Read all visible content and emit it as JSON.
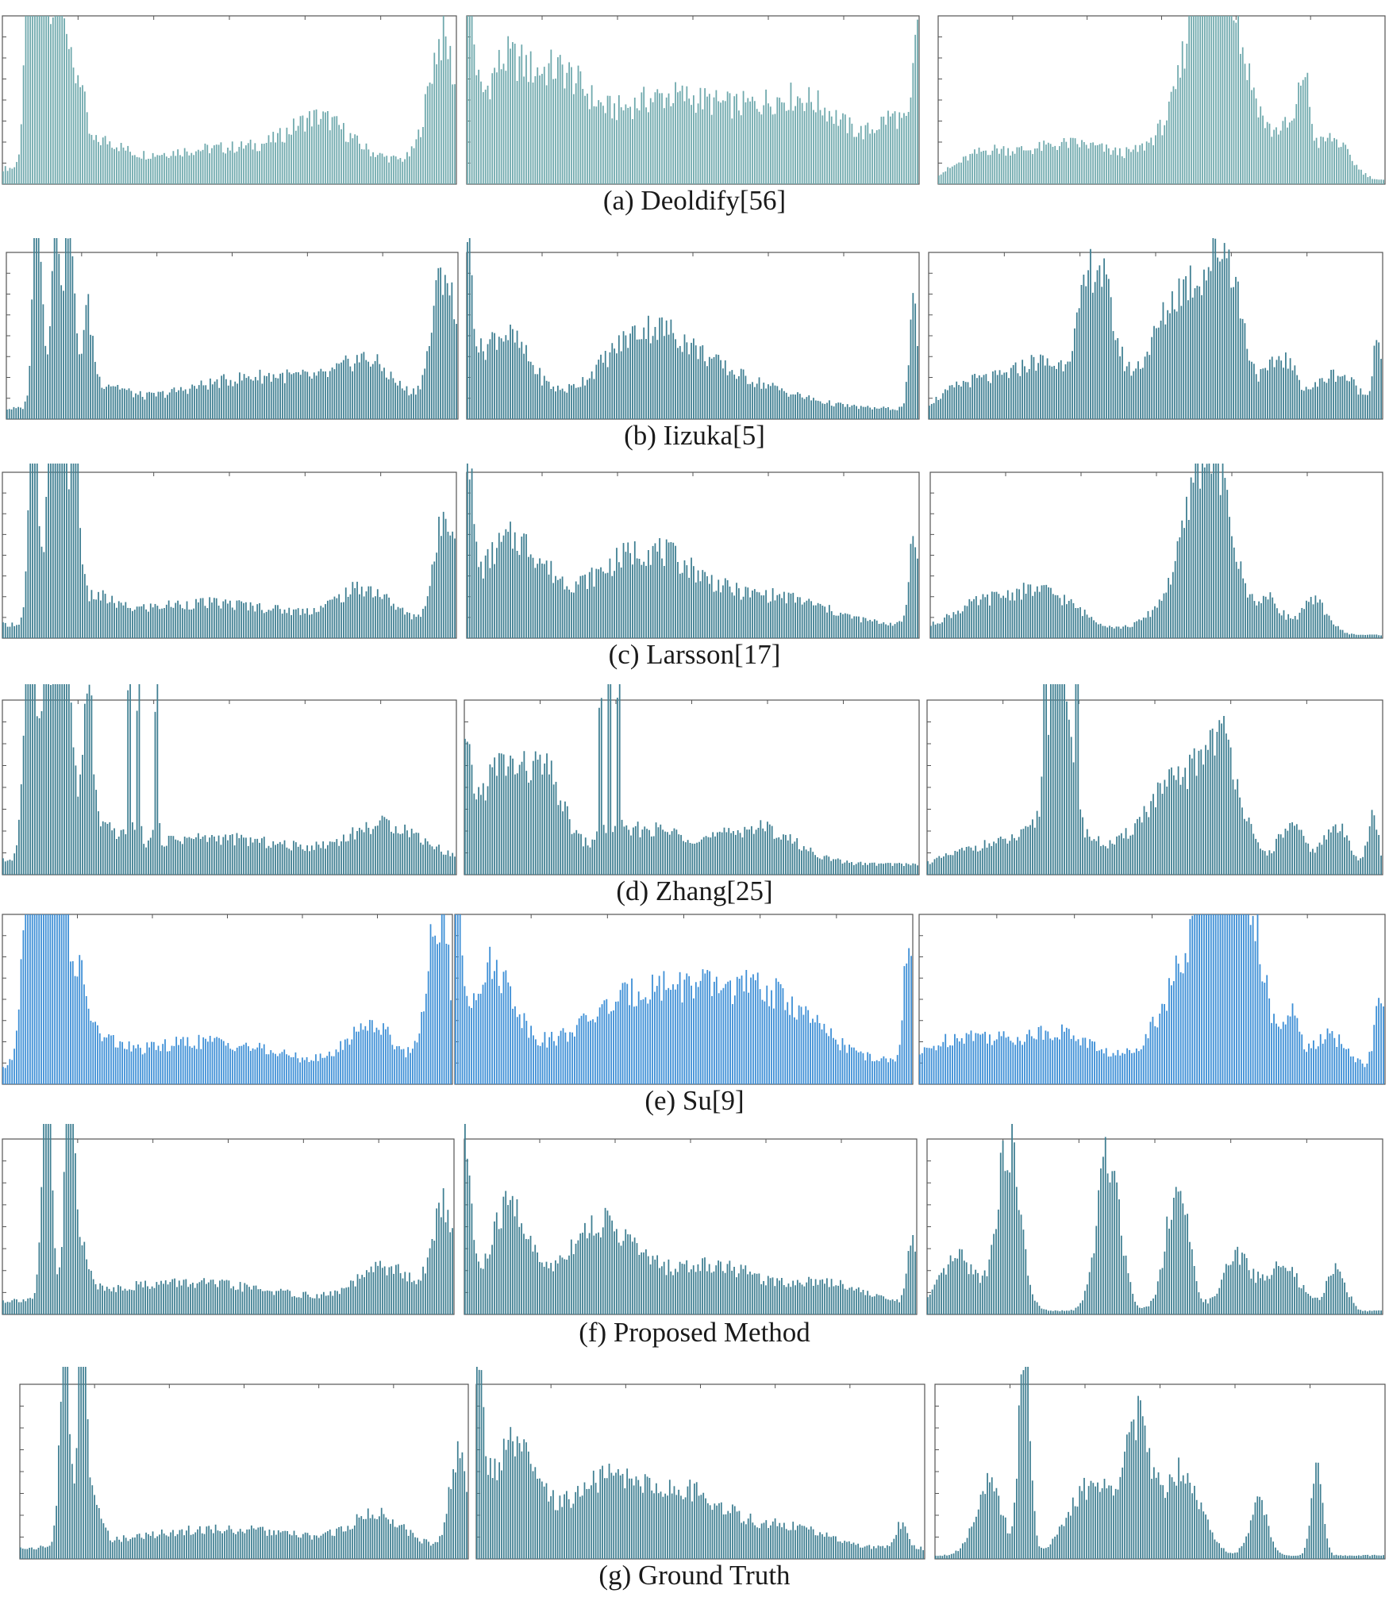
{
  "colors": {
    "teal": "#6fa9ad",
    "steel": "#3f7f92",
    "blue": "#3d8fd6",
    "axis": "#555555",
    "caption": "#1a1a1a"
  },
  "chart_data": [
    {
      "panel": "a",
      "caption": "(a) Deoldify[56]",
      "type": "bar",
      "histograms": [
        {
          "peaks": [
            [
              0.06,
              1.3,
              0.01
            ],
            [
              0.09,
              1.25,
              0.012
            ],
            [
              0.13,
              1.2,
              0.015
            ],
            [
              0.17,
              0.45,
              0.012
            ],
            [
              0.22,
              0.12,
              0.04
            ],
            [
              0.55,
              0.14,
              0.25
            ],
            [
              0.7,
              0.2,
              0.06
            ],
            [
              0.97,
              0.75,
              0.03
            ]
          ],
          "base": 0.08
        },
        {
          "peaks": [
            [
              0.0,
              0.95,
              0.015
            ],
            [
              0.08,
              0.55,
              0.05
            ],
            [
              0.2,
              0.45,
              0.06
            ],
            [
              0.45,
              0.42,
              0.15
            ],
            [
              0.75,
              0.35,
              0.1
            ],
            [
              0.95,
              0.25,
              0.04
            ],
            [
              1.0,
              0.8,
              0.01
            ]
          ],
          "base": 0.1
        },
        {
          "peaks": [
            [
              0.1,
              0.12,
              0.06
            ],
            [
              0.3,
              0.22,
              0.12
            ],
            [
              0.55,
              0.35,
              0.06
            ],
            [
              0.6,
              1.05,
              0.035
            ],
            [
              0.64,
              0.85,
              0.03
            ],
            [
              0.7,
              0.45,
              0.03
            ],
            [
              0.78,
              0.3,
              0.03
            ],
            [
              0.82,
              0.45,
              0.012
            ],
            [
              0.88,
              0.25,
              0.04
            ]
          ],
          "base": 0.02
        }
      ]
    },
    {
      "panel": "b",
      "caption": "(b) Iizuka[5]",
      "type": "bar",
      "histograms": [
        {
          "peaks": [
            [
              0.07,
              1.3,
              0.01
            ],
            [
              0.11,
              1.25,
              0.01
            ],
            [
              0.14,
              1.2,
              0.01
            ],
            [
              0.18,
              0.5,
              0.012
            ],
            [
              0.22,
              0.12,
              0.04
            ],
            [
              0.6,
              0.2,
              0.2
            ],
            [
              0.8,
              0.18,
              0.05
            ],
            [
              0.97,
              0.8,
              0.025
            ]
          ],
          "base": 0.06
        },
        {
          "peaks": [
            [
              0.0,
              0.95,
              0.012
            ],
            [
              0.08,
              0.45,
              0.06
            ],
            [
              0.4,
              0.45,
              0.1
            ],
            [
              0.6,
              0.15,
              0.12
            ],
            [
              0.99,
              0.6,
              0.01
            ]
          ],
          "base": 0.06
        },
        {
          "peaks": [
            [
              0.1,
              0.2,
              0.07
            ],
            [
              0.25,
              0.3,
              0.06
            ],
            [
              0.37,
              0.85,
              0.035
            ],
            [
              0.58,
              0.8,
              0.08
            ],
            [
              0.66,
              0.5,
              0.03
            ],
            [
              0.78,
              0.3,
              0.03
            ],
            [
              0.9,
              0.25,
              0.05
            ],
            [
              0.99,
              0.45,
              0.01
            ]
          ],
          "base": 0.02
        }
      ]
    },
    {
      "panel": "c",
      "caption": "(c) Larsson[17]",
      "type": "bar",
      "histograms": [
        {
          "peaks": [
            [
              0.07,
              1.3,
              0.01
            ],
            [
              0.11,
              1.3,
              0.01
            ],
            [
              0.13,
              1.25,
              0.01
            ],
            [
              0.16,
              1.2,
              0.01
            ],
            [
              0.2,
              0.12,
              0.04
            ],
            [
              0.45,
              0.14,
              0.2
            ],
            [
              0.8,
              0.2,
              0.06
            ],
            [
              0.98,
              0.7,
              0.025
            ]
          ],
          "base": 0.07
        },
        {
          "peaks": [
            [
              0.0,
              1.0,
              0.012
            ],
            [
              0.1,
              0.5,
              0.07
            ],
            [
              0.4,
              0.45,
              0.12
            ],
            [
              0.7,
              0.15,
              0.1
            ],
            [
              0.99,
              0.6,
              0.01
            ]
          ],
          "base": 0.08
        },
        {
          "peaks": [
            [
              0.1,
              0.15,
              0.07
            ],
            [
              0.25,
              0.25,
              0.08
            ],
            [
              0.55,
              0.2,
              0.06
            ],
            [
              0.62,
              1.05,
              0.045
            ],
            [
              0.75,
              0.2,
              0.03
            ],
            [
              0.85,
              0.2,
              0.03
            ]
          ],
          "base": 0.02
        }
      ]
    },
    {
      "panel": "d",
      "caption": "(d) Zhang[25]",
      "type": "bar",
      "histograms": [
        {
          "peaks": [
            [
              0.06,
              1.3,
              0.012
            ],
            [
              0.1,
              1.25,
              0.015
            ],
            [
              0.14,
              1.2,
              0.015
            ],
            [
              0.19,
              0.9,
              0.01
            ],
            [
              0.22,
              0.12,
              0.04
            ],
            [
              0.45,
              0.14,
              0.2
            ],
            [
              0.85,
              0.2,
              0.08
            ],
            [
              0.28,
              1.3,
              0.003
            ],
            [
              0.3,
              1.3,
              0.003
            ],
            [
              0.34,
              1.3,
              0.003
            ]
          ],
          "base": 0.07
        },
        {
          "peaks": [
            [
              0.0,
              0.5,
              0.015
            ],
            [
              0.08,
              0.55,
              0.05
            ],
            [
              0.18,
              0.45,
              0.04
            ],
            [
              0.4,
              0.2,
              0.1
            ],
            [
              0.65,
              0.2,
              0.08
            ],
            [
              0.3,
              1.3,
              0.003
            ],
            [
              0.32,
              1.3,
              0.003
            ],
            [
              0.34,
              1.3,
              0.003
            ]
          ],
          "base": 0.06
        },
        {
          "peaks": [
            [
              0.15,
              0.15,
              0.1
            ],
            [
              0.3,
              0.25,
              0.06
            ],
            [
              0.29,
              0.95,
              0.02
            ],
            [
              0.55,
              0.5,
              0.08
            ],
            [
              0.65,
              0.55,
              0.04
            ],
            [
              0.8,
              0.25,
              0.03
            ],
            [
              0.9,
              0.25,
              0.03
            ],
            [
              0.98,
              0.3,
              0.012
            ],
            [
              0.26,
              1.3,
              0.003
            ],
            [
              0.28,
              1.3,
              0.003
            ],
            [
              0.33,
              1.3,
              0.003
            ]
          ],
          "base": 0.02
        }
      ]
    },
    {
      "panel": "e",
      "caption": "(e) Su[9]",
      "type": "bar",
      "histograms": [
        {
          "peaks": [
            [
              0.06,
              1.3,
              0.015
            ],
            [
              0.1,
              1.25,
              0.015
            ],
            [
              0.13,
              1.2,
              0.015
            ],
            [
              0.17,
              0.45,
              0.02
            ],
            [
              0.22,
              0.12,
              0.04
            ],
            [
              0.45,
              0.15,
              0.15
            ],
            [
              0.82,
              0.25,
              0.05
            ],
            [
              0.97,
              0.9,
              0.025
            ]
          ],
          "base": 0.1
        },
        {
          "peaks": [
            [
              0.0,
              1.1,
              0.012
            ],
            [
              0.08,
              0.55,
              0.05
            ],
            [
              0.45,
              0.45,
              0.15
            ],
            [
              0.7,
              0.3,
              0.1
            ],
            [
              0.99,
              0.7,
              0.01
            ]
          ],
          "base": 0.12
        },
        {
          "peaks": [
            [
              0.1,
              0.2,
              0.08
            ],
            [
              0.3,
              0.22,
              0.08
            ],
            [
              0.6,
              0.7,
              0.07
            ],
            [
              0.66,
              1.0,
              0.035
            ],
            [
              0.72,
              0.55,
              0.03
            ],
            [
              0.8,
              0.3,
              0.015
            ],
            [
              0.88,
              0.2,
              0.04
            ],
            [
              0.99,
              0.4,
              0.012
            ]
          ],
          "base": 0.08
        }
      ]
    },
    {
      "panel": "f",
      "caption": "(f) Proposed Method",
      "type": "bar",
      "histograms": [
        {
          "peaks": [
            [
              0.1,
              1.3,
              0.01
            ],
            [
              0.15,
              1.3,
              0.01
            ],
            [
              0.18,
              0.25,
              0.015
            ],
            [
              0.4,
              0.12,
              0.2
            ],
            [
              0.85,
              0.2,
              0.06
            ],
            [
              0.98,
              0.55,
              0.025
            ]
          ],
          "base": 0.06
        },
        {
          "peaks": [
            [
              0.0,
              0.95,
              0.015
            ],
            [
              0.1,
              0.55,
              0.04
            ],
            [
              0.3,
              0.45,
              0.08
            ],
            [
              0.55,
              0.22,
              0.1
            ],
            [
              0.8,
              0.12,
              0.08
            ],
            [
              0.99,
              0.35,
              0.01
            ]
          ],
          "base": 0.06
        },
        {
          "peaks": [
            [
              0.07,
              0.3,
              0.04
            ],
            [
              0.18,
              0.95,
              0.025
            ],
            [
              0.4,
              0.9,
              0.025
            ],
            [
              0.55,
              0.7,
              0.025
            ],
            [
              0.68,
              0.3,
              0.03
            ],
            [
              0.78,
              0.25,
              0.04
            ],
            [
              0.9,
              0.25,
              0.02
            ]
          ],
          "base": 0.02
        }
      ]
    },
    {
      "panel": "g",
      "caption": "(g) Ground Truth",
      "type": "bar",
      "histograms": [
        {
          "peaks": [
            [
              0.1,
              1.3,
              0.01
            ],
            [
              0.14,
              1.3,
              0.01
            ],
            [
              0.17,
              0.2,
              0.015
            ],
            [
              0.45,
              0.12,
              0.2
            ],
            [
              0.8,
              0.18,
              0.06
            ],
            [
              0.98,
              0.55,
              0.02
            ]
          ],
          "base": 0.05
        },
        {
          "peaks": [
            [
              0.0,
              0.95,
              0.015
            ],
            [
              0.08,
              0.55,
              0.05
            ],
            [
              0.3,
              0.4,
              0.1
            ],
            [
              0.5,
              0.25,
              0.08
            ],
            [
              0.7,
              0.12,
              0.08
            ],
            [
              0.95,
              0.15,
              0.012
            ]
          ],
          "base": 0.06
        },
        {
          "peaks": [
            [
              0.12,
              0.4,
              0.03
            ],
            [
              0.2,
              1.3,
              0.012
            ],
            [
              0.35,
              0.4,
              0.05
            ],
            [
              0.45,
              0.7,
              0.03
            ],
            [
              0.55,
              0.5,
              0.04
            ],
            [
              0.72,
              0.3,
              0.02
            ],
            [
              0.85,
              0.5,
              0.012
            ]
          ],
          "base": 0.02
        }
      ]
    }
  ]
}
